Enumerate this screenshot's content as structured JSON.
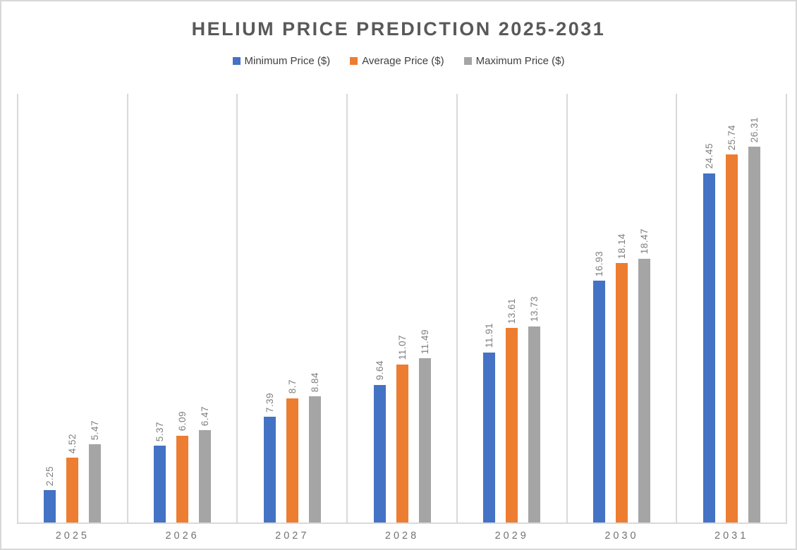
{
  "chart_data": {
    "type": "bar",
    "title": "HELIUM PRICE PREDICTION 2025-2031",
    "categories": [
      "2025",
      "2026",
      "2027",
      "2028",
      "2029",
      "2030",
      "2031"
    ],
    "series": [
      {
        "name": "Minimum Price ($)",
        "color": "#4472C4",
        "values": [
          2.25,
          5.37,
          7.39,
          9.64,
          11.91,
          16.93,
          24.45
        ]
      },
      {
        "name": "Average Price ($)",
        "color": "#ED7D31",
        "values": [
          4.52,
          6.09,
          8.7,
          11.07,
          13.61,
          18.14,
          25.74
        ]
      },
      {
        "name": "Maximum Price ($)",
        "color": "#A5A5A5",
        "values": [
          5.47,
          6.47,
          8.84,
          11.49,
          13.73,
          18.47,
          26.31
        ]
      }
    ],
    "xlabel": "",
    "ylabel": "",
    "ylim": [
      0,
      30
    ],
    "grid": "vertical-category-separators-only",
    "legend_position": "top",
    "data_labels": true,
    "data_label_rotation": "vertical",
    "colors": {
      "frame_border": "#d8d8d8",
      "gridline": "#d9d9d9",
      "title_text": "#595959",
      "legend_text": "#404040",
      "data_label_text": "#7f7f7f",
      "axis_label_text": "#737373"
    }
  }
}
